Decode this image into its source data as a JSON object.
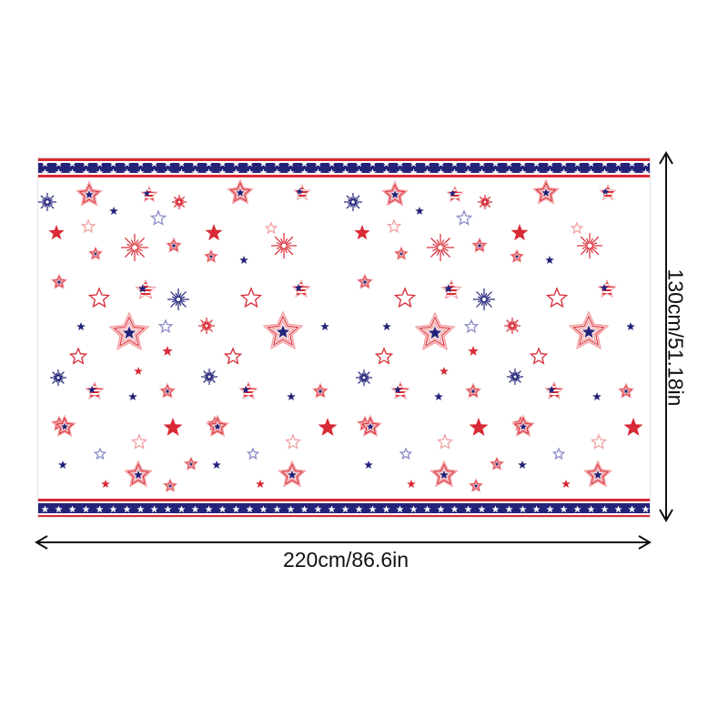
{
  "product": {
    "colors": {
      "red": "#d82a35",
      "navy": "#23237a",
      "pink": "#f2a1a4",
      "lavender": "#8c8cc8"
    }
  },
  "dimensions": {
    "width_label": "220cm/86.6in",
    "height_label": "130cm/51.18in"
  },
  "icons": [
    "star-icon",
    "starburst-icon",
    "flag-star-icon",
    "arrow-icon"
  ]
}
